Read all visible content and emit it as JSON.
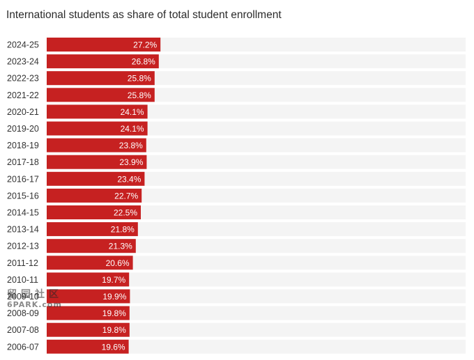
{
  "colors": {
    "bar": "#c62121",
    "track": "#f4f4f4",
    "label_text": "#333333",
    "value_text": "#ffffff"
  },
  "watermark": {
    "logo_text": "留园社区",
    "domain_text": "6PARK.com"
  },
  "chart_data": {
    "type": "bar",
    "orientation": "horizontal",
    "title": "International students as share of total student enrollment",
    "xlabel": "",
    "ylabel": "",
    "xlim": [
      0,
      100
    ],
    "grid": false,
    "legend": "none",
    "categories": [
      "2024-25",
      "2023-24",
      "2022-23",
      "2021-22",
      "2020-21",
      "2019-20",
      "2018-19",
      "2017-18",
      "2016-17",
      "2015-16",
      "2014-15",
      "2013-14",
      "2012-13",
      "2011-12",
      "2010-11",
      "2009-10",
      "2008-09",
      "2007-08",
      "2006-07"
    ],
    "values": [
      27.2,
      26.8,
      25.8,
      25.8,
      24.1,
      24.1,
      23.8,
      23.9,
      23.4,
      22.7,
      22.5,
      21.8,
      21.3,
      20.6,
      19.7,
      19.9,
      19.8,
      19.8,
      19.6
    ],
    "value_labels": [
      "27.2%",
      "26.8%",
      "25.8%",
      "25.8%",
      "24.1%",
      "24.1%",
      "23.8%",
      "23.9%",
      "23.4%",
      "22.7%",
      "22.5%",
      "21.8%",
      "21.3%",
      "20.6%",
      "19.7%",
      "19.9%",
      "19.8%",
      "19.8%",
      "19.6%"
    ]
  }
}
